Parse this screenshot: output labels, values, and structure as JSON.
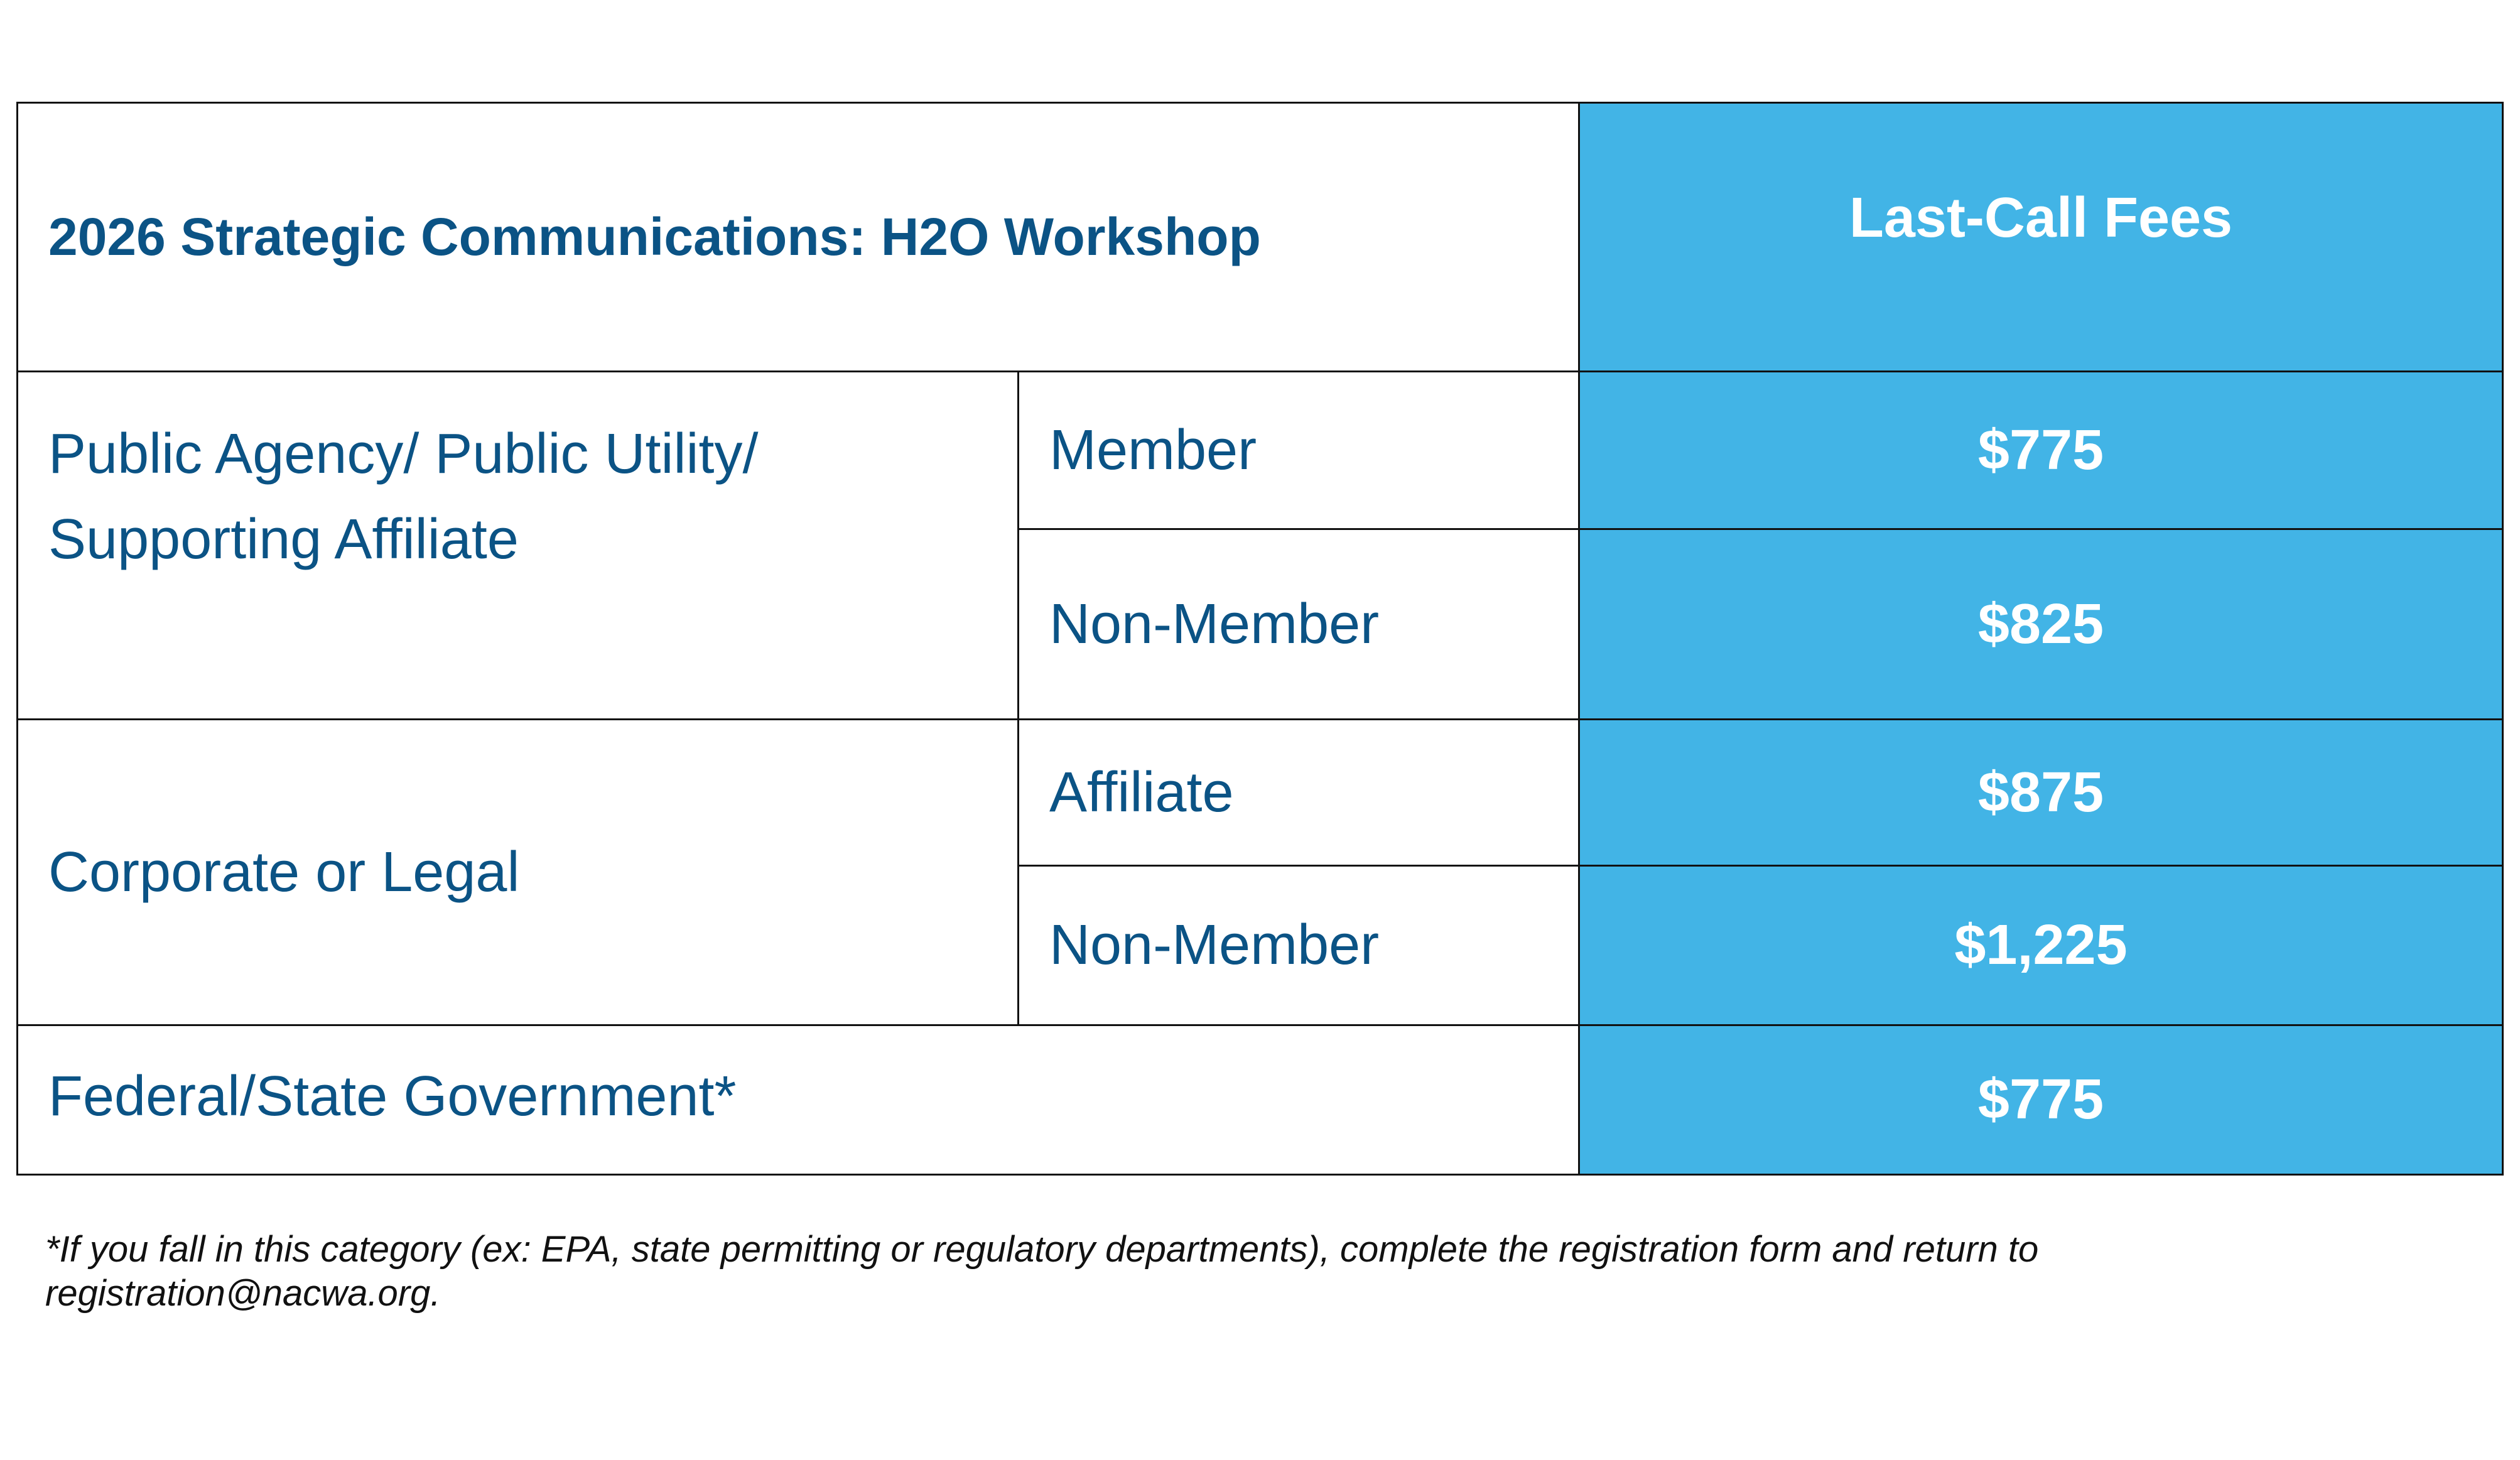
{
  "header": {
    "title": "2026 Strategic Communications: H2O Workshop",
    "fee_header": "Last-Call Fees"
  },
  "rows": [
    {
      "category": "Public Agency/ Public Utility/ Supporting Affiliate",
      "subrows": [
        {
          "type": "Member",
          "fee": "$775"
        },
        {
          "type": "Non-Member",
          "fee": "$825"
        }
      ]
    },
    {
      "category": "Corporate or Legal",
      "subrows": [
        {
          "type": "Affiliate",
          "fee": "$875"
        },
        {
          "type": "Non-Member",
          "fee": "$1,225"
        }
      ]
    },
    {
      "category": "Federal/State Government*",
      "fee": "$775"
    }
  ],
  "footnote": "*If you fall in this category (ex: EPA, state permitting or regulatory departments), complete the registration form and return to registration@nacwa.org."
}
